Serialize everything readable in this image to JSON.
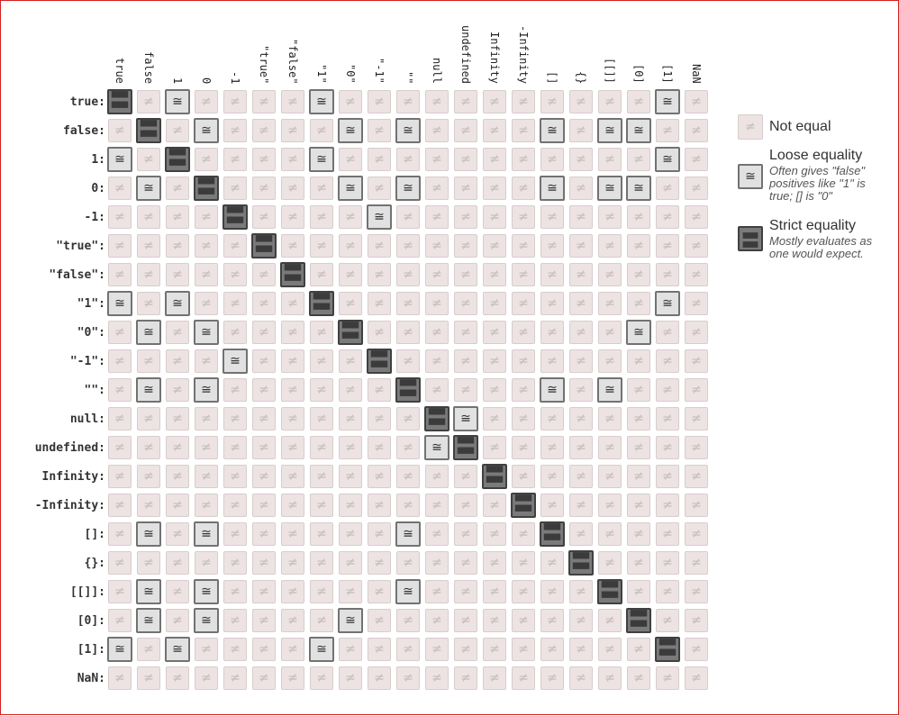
{
  "values": [
    "true",
    "false",
    "1",
    "0",
    "-1",
    "\"true\"",
    "\"false\"",
    "\"1\"",
    "\"0\"",
    "\"-1\"",
    "\"\"",
    "null",
    "undefined",
    "Infinity",
    "-Infinity",
    "[]",
    "{}",
    "[[]]",
    "[0]",
    "[1]",
    "NaN"
  ],
  "row_suffix": ":",
  "symbols": {
    "not_equal": "≠",
    "loose": "≅",
    "strict": "〓"
  },
  "legend": {
    "not_equal": {
      "title": "Not equal"
    },
    "loose": {
      "title": "Loose equality",
      "description": "Often gives \"false\" positives like \"1\" is true; [] is \"0\""
    },
    "strict": {
      "title": "Strict equality",
      "description": "Mostly evaluates as one would expect."
    }
  },
  "colors": {
    "not_equal_fill": "#ede3e3",
    "loose_fill": "#e1e1e1",
    "strict_fill": "#7a7a7a",
    "frame": "#d21f1f"
  },
  "loose_pairs": [
    [
      0,
      2
    ],
    [
      0,
      7
    ],
    [
      0,
      19
    ],
    [
      1,
      3
    ],
    [
      1,
      8
    ],
    [
      1,
      10
    ],
    [
      1,
      15
    ],
    [
      1,
      17
    ],
    [
      1,
      18
    ],
    [
      2,
      7
    ],
    [
      2,
      19
    ],
    [
      3,
      8
    ],
    [
      3,
      10
    ],
    [
      3,
      15
    ],
    [
      3,
      17
    ],
    [
      3,
      18
    ],
    [
      4,
      9
    ],
    [
      8,
      18
    ],
    [
      10,
      15
    ],
    [
      10,
      17
    ],
    [
      11,
      12
    ],
    [
      7,
      19
    ]
  ]
}
